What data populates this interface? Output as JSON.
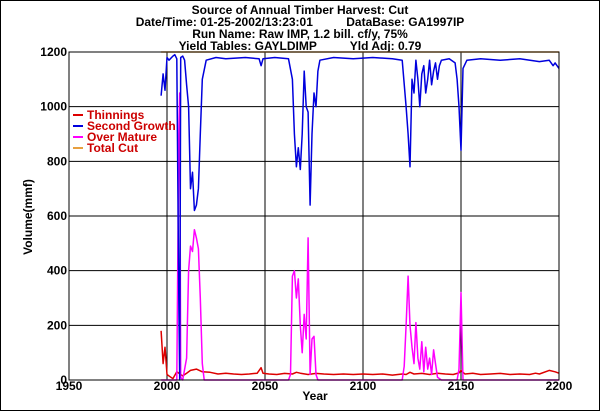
{
  "chart_data": {
    "type": "line",
    "title_lines": [
      "Source of Annual Timber Harvest: Cut",
      "Date/Time: 01-25-2002/13:23:01          DataBase: GA1997IP",
      "Run Name: Raw IMP, 1.2 bill. cf/y, 75%",
      "Yield Tables: GAYLDIMP          Yld Adj: 0.79"
    ],
    "xlabel": "Year",
    "ylabel": "Volume(mmf)",
    "xlim": [
      1950,
      2200
    ],
    "ylim": [
      0,
      1200
    ],
    "xticks": [
      "1950",
      "2000",
      "2050",
      "2100",
      "2150",
      "2200"
    ],
    "yticks": [
      "0",
      "200",
      "400",
      "600",
      "800",
      "1000",
      "1200"
    ],
    "grid": true,
    "legend_position": "top-left",
    "series": [
      {
        "name": "Thinnings",
        "color": "#dd0000",
        "points": [
          [
            1997,
            180
          ],
          [
            1998,
            60
          ],
          [
            1999,
            120
          ],
          [
            2000,
            20
          ],
          [
            2002,
            10
          ],
          [
            2003,
            5
          ],
          [
            2005,
            30
          ],
          [
            2008,
            15
          ],
          [
            2010,
            25
          ],
          [
            2012,
            35
          ],
          [
            2015,
            40
          ],
          [
            2018,
            30
          ],
          [
            2022,
            28
          ],
          [
            2026,
            22
          ],
          [
            2030,
            25
          ],
          [
            2034,
            22
          ],
          [
            2038,
            20
          ],
          [
            2042,
            22
          ],
          [
            2046,
            25
          ],
          [
            2048,
            45
          ],
          [
            2049,
            25
          ],
          [
            2052,
            22
          ],
          [
            2056,
            20
          ],
          [
            2060,
            24
          ],
          [
            2064,
            22
          ],
          [
            2066,
            28
          ],
          [
            2068,
            25
          ],
          [
            2072,
            20
          ],
          [
            2076,
            24
          ],
          [
            2080,
            22
          ],
          [
            2085,
            20
          ],
          [
            2090,
            22
          ],
          [
            2095,
            20
          ],
          [
            2100,
            22
          ],
          [
            2105,
            20
          ],
          [
            2110,
            22
          ],
          [
            2115,
            18
          ],
          [
            2120,
            22
          ],
          [
            2122,
            20
          ],
          [
            2124,
            28
          ],
          [
            2126,
            22
          ],
          [
            2130,
            24
          ],
          [
            2134,
            20
          ],
          [
            2138,
            25
          ],
          [
            2142,
            22
          ],
          [
            2146,
            20
          ],
          [
            2149,
            26
          ],
          [
            2150,
            35
          ],
          [
            2152,
            22
          ],
          [
            2156,
            25
          ],
          [
            2160,
            20
          ],
          [
            2165,
            22
          ],
          [
            2170,
            24
          ],
          [
            2175,
            20
          ],
          [
            2180,
            22
          ],
          [
            2185,
            20
          ],
          [
            2188,
            25
          ],
          [
            2190,
            22
          ],
          [
            2195,
            35
          ],
          [
            2198,
            30
          ],
          [
            2200,
            25
          ]
        ]
      },
      {
        "name": "Second Growth",
        "color": "#0000dd",
        "points": [
          [
            1997,
            1040
          ],
          [
            1998,
            1120
          ],
          [
            1999,
            1060
          ],
          [
            2000,
            1180
          ],
          [
            2001,
            1170
          ],
          [
            2003,
            1185
          ],
          [
            2004,
            1190
          ],
          [
            2005,
            1175
          ],
          [
            2006,
            300
          ],
          [
            2006.5,
            0
          ],
          [
            2007,
            1180
          ],
          [
            2008,
            1185
          ],
          [
            2009,
            1170
          ],
          [
            2010,
            1080
          ],
          [
            2011,
            1000
          ],
          [
            2012,
            700
          ],
          [
            2013,
            760
          ],
          [
            2014,
            620
          ],
          [
            2015,
            640
          ],
          [
            2016,
            700
          ],
          [
            2017,
            900
          ],
          [
            2018,
            1100
          ],
          [
            2020,
            1170
          ],
          [
            2025,
            1180
          ],
          [
            2030,
            1175
          ],
          [
            2040,
            1180
          ],
          [
            2047,
            1175
          ],
          [
            2048,
            1150
          ],
          [
            2049,
            1175
          ],
          [
            2055,
            1180
          ],
          [
            2062,
            1175
          ],
          [
            2064,
            1100
          ],
          [
            2065,
            900
          ],
          [
            2066,
            780
          ],
          [
            2067,
            850
          ],
          [
            2068,
            770
          ],
          [
            2069,
            900
          ],
          [
            2070,
            1130
          ],
          [
            2071,
            1000
          ],
          [
            2072,
            980
          ],
          [
            2073,
            640
          ],
          [
            2074,
            900
          ],
          [
            2075,
            1050
          ],
          [
            2076,
            1000
          ],
          [
            2077,
            1130
          ],
          [
            2078,
            1170
          ],
          [
            2085,
            1180
          ],
          [
            2095,
            1175
          ],
          [
            2105,
            1180
          ],
          [
            2115,
            1175
          ],
          [
            2120,
            1170
          ],
          [
            2122,
            1000
          ],
          [
            2123,
            900
          ],
          [
            2124,
            780
          ],
          [
            2125,
            1100
          ],
          [
            2126,
            1050
          ],
          [
            2127,
            1170
          ],
          [
            2128,
            1100
          ],
          [
            2129,
            1000
          ],
          [
            2130,
            1120
          ],
          [
            2131,
            1150
          ],
          [
            2132,
            1050
          ],
          [
            2133,
            1100
          ],
          [
            2134,
            1170
          ],
          [
            2135,
            1080
          ],
          [
            2136,
            1130
          ],
          [
            2137,
            1160
          ],
          [
            2138,
            1100
          ],
          [
            2139,
            1150
          ],
          [
            2140,
            1170
          ],
          [
            2144,
            1175
          ],
          [
            2147,
            1160
          ],
          [
            2148,
            1100
          ],
          [
            2149,
            1000
          ],
          [
            2150,
            840
          ],
          [
            2151,
            1140
          ],
          [
            2153,
            1170
          ],
          [
            2160,
            1175
          ],
          [
            2170,
            1170
          ],
          [
            2180,
            1175
          ],
          [
            2190,
            1165
          ],
          [
            2195,
            1170
          ],
          [
            2197,
            1150
          ],
          [
            2198,
            1160
          ],
          [
            2200,
            1140
          ]
        ]
      },
      {
        "name": "Over Mature",
        "color": "#ff00ff",
        "points": [
          [
            1997,
            0
          ],
          [
            2005,
            0
          ],
          [
            2006,
            900
          ],
          [
            2006.5,
            1050
          ],
          [
            2007,
            10
          ],
          [
            2008,
            0
          ],
          [
            2010,
            80
          ],
          [
            2011,
            400
          ],
          [
            2012,
            490
          ],
          [
            2013,
            470
          ],
          [
            2014,
            550
          ],
          [
            2015,
            520
          ],
          [
            2016,
            480
          ],
          [
            2017,
            300
          ],
          [
            2018,
            60
          ],
          [
            2019,
            0
          ],
          [
            2062,
            0
          ],
          [
            2063,
            20
          ],
          [
            2064,
            380
          ],
          [
            2065,
            400
          ],
          [
            2066,
            300
          ],
          [
            2067,
            370
          ],
          [
            2068,
            200
          ],
          [
            2069,
            100
          ],
          [
            2070,
            240
          ],
          [
            2071,
            150
          ],
          [
            2072,
            520
          ],
          [
            2073,
            20
          ],
          [
            2074,
            150
          ],
          [
            2075,
            160
          ],
          [
            2076,
            20
          ],
          [
            2077,
            0
          ],
          [
            2120,
            0
          ],
          [
            2121,
            50
          ],
          [
            2122,
            200
          ],
          [
            2123,
            380
          ],
          [
            2124,
            200
          ],
          [
            2125,
            120
          ],
          [
            2126,
            60
          ],
          [
            2127,
            210
          ],
          [
            2128,
            80
          ],
          [
            2129,
            40
          ],
          [
            2130,
            140
          ],
          [
            2131,
            30
          ],
          [
            2132,
            120
          ],
          [
            2133,
            40
          ],
          [
            2134,
            80
          ],
          [
            2135,
            20
          ],
          [
            2136,
            110
          ],
          [
            2137,
            60
          ],
          [
            2138,
            10
          ],
          [
            2140,
            0
          ],
          [
            2148,
            0
          ],
          [
            2149,
            40
          ],
          [
            2150,
            320
          ],
          [
            2151,
            0
          ],
          [
            2200,
            0
          ]
        ]
      },
      {
        "name": "Total Cut",
        "color": "#e8a040",
        "points": [
          [
            1997,
            1200
          ],
          [
            2200,
            1200
          ]
        ]
      }
    ]
  }
}
